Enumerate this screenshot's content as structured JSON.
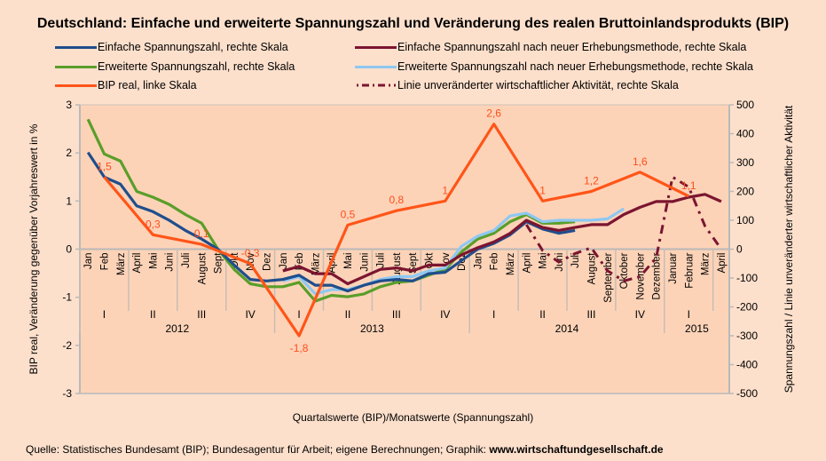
{
  "title": "Deutschland: Einfache und erweiterte Spannungszahl und Veränderung des realen Bruttoinlandsprodukts (BIP)",
  "legend": [
    {
      "label": "Einfache Spannungszahl, rechte Skala",
      "color": "#1f4e8c",
      "style": "solid"
    },
    {
      "label": "Einfache Spannungszahl nach neuer Erhebungsmethode, rechte Skala",
      "color": "#7b1530",
      "style": "solid"
    },
    {
      "label": "Erweiterte Spannungszahl, rechte Skala",
      "color": "#5a9e2a",
      "style": "solid"
    },
    {
      "label": "Erweiterte Spannungszahl nach neuer Erhebungsmethode, rechte Skala",
      "color": "#8ec8f2",
      "style": "solid"
    },
    {
      "label": "BIP real, linke Skala",
      "color": "#ff5518",
      "style": "solid"
    },
    {
      "label": "Linie unveränderter wirtschaftlicher Aktivität, rechte Skala",
      "color": "#7b1530",
      "style": "dashdot"
    }
  ],
  "xlabel": "Quartalswerte (BIP)/Monatswerte (Spannungszahl)",
  "source_prefix": "Quelle: Statistisches Bundesamt (BIP); Bundesagentur für Arbeit; eigene Berechnungen; Graphik: ",
  "source_link": "www.wirtschaftundgesellschaft.de",
  "chart_data": {
    "type": "line",
    "title": "Deutschland: Einfache und erweiterte Spannungszahl und Veränderung des realen Bruttoinlandsprodukts (BIP)",
    "xlabel": "Quartalswerte (BIP)/Monatswerte (Spannungszahl)",
    "ylabel_left": "BIP real, Veränderung gegenüber Vorjahreswert in %",
    "ylabel_right": "Spannungszahl / Linie unveränderter wirtschaftlicher Aktivität",
    "ylim_left": [
      -3,
      3
    ],
    "yticks_left": [
      "3",
      "2",
      "1",
      "0",
      "-1",
      "-2",
      "-3"
    ],
    "ylim_right": [
      -500,
      500
    ],
    "yticks_right": [
      "500",
      "400",
      "300",
      "200",
      "100",
      "0",
      "-100",
      "-200",
      "-300",
      "-400",
      "-500"
    ],
    "months": [
      "Jan",
      "Feb",
      "März",
      "April",
      "Mai",
      "Juni",
      "Juli",
      "August",
      "Sept",
      "Okt",
      "Nov",
      "Dez",
      "Jan",
      "Feb",
      "März",
      "April",
      "Mai",
      "Juni",
      "Juli",
      "August",
      "Sept",
      "Okt",
      "Nov",
      "Dez",
      "Jan",
      "Feb",
      "März",
      "April",
      "Mai",
      "Juni",
      "Juli",
      "August",
      "September",
      "Oktober",
      "November",
      "Dezember",
      "Januar",
      "Februar",
      "März",
      "April"
    ],
    "quarters": [
      "I",
      "II",
      "III",
      "IV",
      "I",
      "II",
      "III",
      "IV",
      "I",
      "II",
      "III",
      "IV",
      "I"
    ],
    "years": [
      "2012",
      "2013",
      "2014",
      "2015"
    ],
    "series": [
      {
        "name": "Einfache Spannungszahl, rechte Skala",
        "axis": "right",
        "color": "#1f4e8c",
        "values": [
          335,
          250,
          225,
          150,
          130,
          100,
          65,
          35,
          0,
          -55,
          -105,
          -110,
          -105,
          -90,
          -125,
          -125,
          -145,
          -125,
          -110,
          -105,
          -110,
          -85,
          -80,
          -40,
          0,
          20,
          50,
          95,
          70,
          55,
          65,
          null,
          null,
          null,
          null,
          null,
          null,
          null,
          null,
          null
        ]
      },
      {
        "name": "Einfache Spannungszahl nach neuer Erhebungsmethode, rechte Skala",
        "axis": "right",
        "color": "#7b1530",
        "values": [
          null,
          null,
          null,
          null,
          null,
          null,
          null,
          null,
          null,
          null,
          null,
          null,
          -75,
          -60,
          -85,
          -85,
          -120,
          -95,
          -70,
          -65,
          -75,
          -55,
          -55,
          -20,
          5,
          25,
          55,
          100,
          75,
          65,
          75,
          85,
          85,
          120,
          145,
          165,
          165,
          180,
          190,
          165
        ]
      },
      {
        "name": "Erweiterte Spannungszahl, rechte Skala",
        "axis": "right",
        "color": "#5a9e2a",
        "values": [
          450,
          330,
          305,
          200,
          180,
          155,
          120,
          90,
          0,
          -70,
          -120,
          -130,
          -130,
          -115,
          -180,
          -160,
          -165,
          -155,
          -130,
          -115,
          -110,
          -90,
          -70,
          -10,
          35,
          55,
          95,
          120,
          90,
          90,
          95,
          null,
          null,
          null,
          null,
          null,
          null,
          null,
          null,
          null
        ]
      },
      {
        "name": "Erweiterte Spannungszahl nach neuer Erhebungsmethode, rechte Skala",
        "axis": "right",
        "color": "#8ec8f2",
        "values": [
          null,
          null,
          null,
          null,
          null,
          null,
          null,
          null,
          null,
          null,
          null,
          null,
          -110,
          -95,
          -155,
          -140,
          -140,
          -125,
          -105,
          -95,
          -95,
          -75,
          -65,
          10,
          45,
          65,
          115,
          125,
          95,
          100,
          100,
          100,
          105,
          140,
          null,
          null,
          null,
          null,
          null,
          null
        ]
      },
      {
        "name": "BIP real, linke Skala",
        "axis": "left",
        "color": "#ff5518",
        "points": [
          {
            "month_index": 1,
            "value": 1.5,
            "label": "1,5"
          },
          {
            "month_index": 4,
            "value": 0.3,
            "label": "0,3"
          },
          {
            "month_index": 7,
            "value": 0.1,
            "label": "0,1"
          },
          {
            "month_index": 10,
            "value": -0.3,
            "label": "-0,3"
          },
          {
            "month_index": 13,
            "value": -1.8,
            "label": "-1,8"
          },
          {
            "month_index": 16,
            "value": 0.5,
            "label": "0,5"
          },
          {
            "month_index": 19,
            "value": 0.8,
            "label": "0,8"
          },
          {
            "month_index": 22,
            "value": 1.0,
            "label": "1"
          },
          {
            "month_index": 25,
            "value": 2.6,
            "label": "2,6"
          },
          {
            "month_index": 28,
            "value": 1.0,
            "label": "1"
          },
          {
            "month_index": 31,
            "value": 1.2,
            "label": "1,2"
          },
          {
            "month_index": 34,
            "value": 1.6,
            "label": "1,6"
          },
          {
            "month_index": 37,
            "value": 1.1,
            "label": "1,1"
          }
        ]
      },
      {
        "name": "Linie unveränderter wirtschaftlicher Aktivität, rechte Skala",
        "axis": "right",
        "color": "#7b1530",
        "style": "dashdot",
        "values": [
          null,
          null,
          null,
          null,
          null,
          null,
          null,
          null,
          null,
          null,
          null,
          null,
          null,
          null,
          null,
          null,
          null,
          null,
          null,
          null,
          null,
          null,
          null,
          null,
          null,
          null,
          null,
          85,
          -5,
          -45,
          -15,
          5,
          -75,
          -110,
          -95,
          -30,
          250,
          215,
          80,
          0
        ]
      }
    ],
    "grid": false,
    "legend_position": "top"
  }
}
